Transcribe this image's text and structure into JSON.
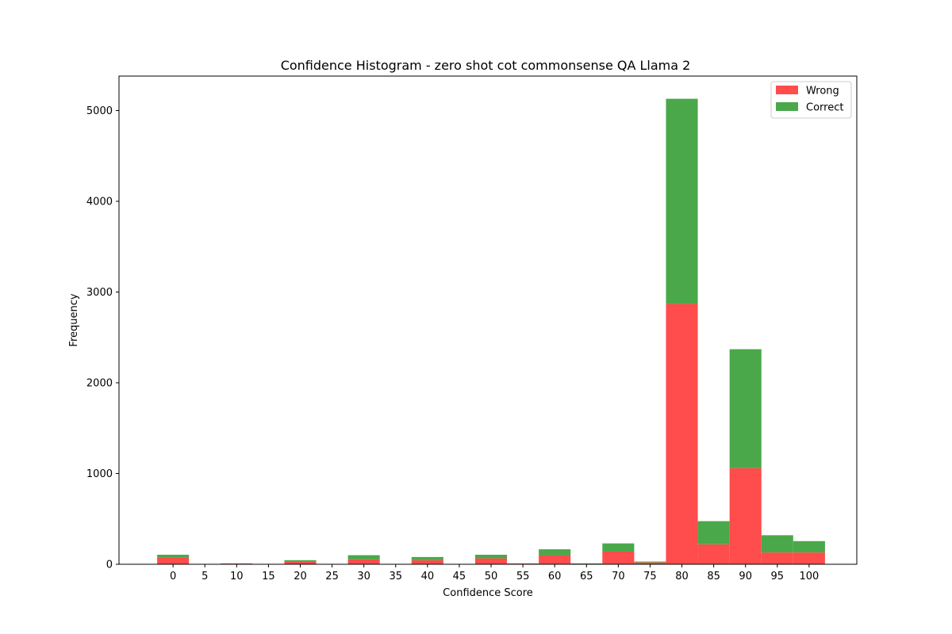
{
  "chart_data": {
    "type": "bar",
    "stacked": true,
    "title": "Confidence Histogram - zero shot cot commonsense QA Llama 2",
    "xlabel": "Confidence Score",
    "ylabel": "Frequency",
    "bin_width": 5,
    "xlim": [
      -8.5,
      107.5
    ],
    "ylim": [
      0,
      5380
    ],
    "x_ticks": [
      0,
      5,
      10,
      15,
      20,
      25,
      30,
      35,
      40,
      45,
      50,
      55,
      60,
      65,
      70,
      75,
      80,
      85,
      90,
      95,
      100
    ],
    "x_tick_labels": [
      "0",
      "5",
      "10",
      "15",
      "20",
      "25",
      "30",
      "35",
      "40",
      "45",
      "50",
      "55",
      "60",
      "65",
      "70",
      "75",
      "80",
      "85",
      "90",
      "95",
      "100"
    ],
    "y_ticks": [
      0,
      1000,
      2000,
      3000,
      4000,
      5000
    ],
    "y_tick_labels": [
      "0",
      "1000",
      "2000",
      "3000",
      "4000",
      "5000"
    ],
    "categories": [
      0,
      5,
      10,
      15,
      20,
      25,
      30,
      35,
      40,
      45,
      50,
      55,
      60,
      65,
      70,
      75,
      80,
      85,
      90,
      95,
      100
    ],
    "series": [
      {
        "name": "Wrong",
        "color": "#ff4c4c",
        "values": [
          75,
          0,
          8,
          0,
          30,
          0,
          55,
          0,
          45,
          0,
          65,
          8,
          100,
          5,
          140,
          20,
          2870,
          220,
          1060,
          130,
          130
        ]
      },
      {
        "name": "Correct",
        "color": "#4aa84a",
        "values": [
          30,
          0,
          2,
          0,
          15,
          0,
          45,
          0,
          35,
          0,
          40,
          2,
          65,
          5,
          90,
          10,
          2260,
          255,
          1310,
          190,
          125
        ]
      }
    ],
    "legend": {
      "position": "top-right",
      "entries": [
        "Wrong",
        "Correct"
      ]
    },
    "grid": false
  }
}
